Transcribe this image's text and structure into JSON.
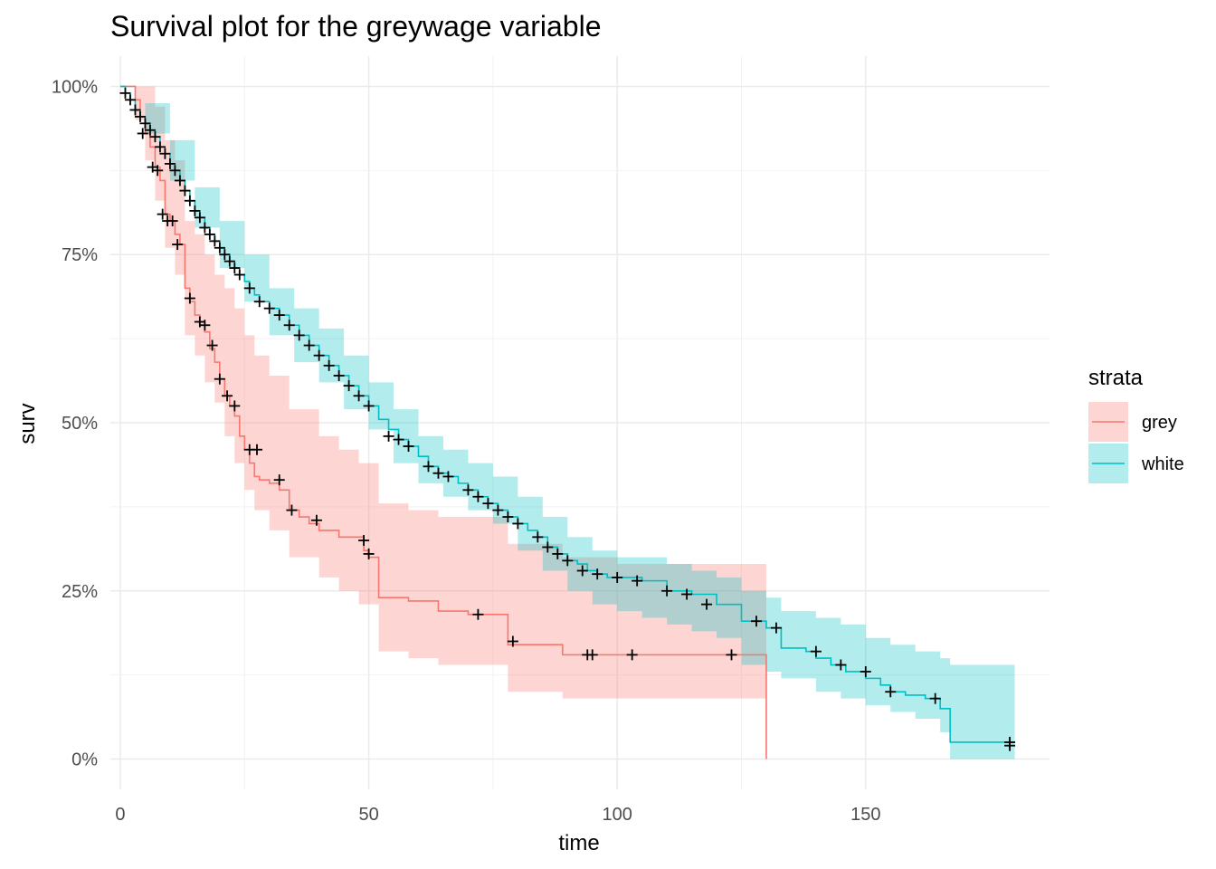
{
  "chart_data": {
    "type": "line",
    "title": "Survival plot for the greywage variable",
    "xlabel": "time",
    "ylabel": "surv",
    "xlim": [
      -2,
      187
    ],
    "ylim": [
      -0.045,
      1.045
    ],
    "x_ticks": [
      0,
      50,
      100,
      150
    ],
    "x_tick_labels": [
      "0",
      "50",
      "100",
      "150"
    ],
    "y_ticks": [
      0,
      0.25,
      0.5,
      0.75,
      1.0
    ],
    "y_tick_labels": [
      "0%",
      "25%",
      "50%",
      "75%",
      "100%"
    ],
    "grid": true,
    "legend": {
      "title": "strata",
      "position": "right"
    },
    "series": [
      {
        "name": "grey",
        "color": "#F8766D",
        "band_color": "#F8766D",
        "step_x": [
          0,
          3,
          4,
          5,
          6,
          7,
          8,
          9,
          10,
          11,
          12,
          13,
          14,
          15,
          16,
          17,
          18,
          19,
          20,
          21,
          22,
          23,
          24,
          25,
          26,
          27,
          28,
          30,
          32,
          34,
          36,
          38,
          40,
          44,
          49,
          50,
          52,
          58,
          64,
          70,
          78,
          89,
          100,
          110,
          123,
          130
        ],
        "step_y": [
          1.0,
          0.98,
          0.955,
          0.93,
          0.91,
          0.88,
          0.86,
          0.81,
          0.8,
          0.78,
          0.765,
          0.7,
          0.68,
          0.66,
          0.65,
          0.635,
          0.61,
          0.59,
          0.565,
          0.54,
          0.525,
          0.51,
          0.48,
          0.46,
          0.44,
          0.42,
          0.415,
          0.41,
          0.4,
          0.37,
          0.36,
          0.35,
          0.34,
          0.33,
          0.31,
          0.3,
          0.24,
          0.235,
          0.22,
          0.215,
          0.17,
          0.155,
          0.155,
          0.155,
          0.155,
          0.0
        ],
        "band_x": [
          0,
          3,
          5,
          7,
          9,
          11,
          13,
          15,
          17,
          19,
          21,
          23,
          25,
          27,
          30,
          34,
          40,
          44,
          48,
          52,
          58,
          64,
          70,
          78,
          89,
          100,
          110,
          123,
          130
        ],
        "band_lower": [
          1.0,
          0.95,
          0.89,
          0.83,
          0.76,
          0.72,
          0.63,
          0.6,
          0.56,
          0.53,
          0.48,
          0.44,
          0.4,
          0.37,
          0.34,
          0.3,
          0.27,
          0.25,
          0.23,
          0.16,
          0.15,
          0.14,
          0.14,
          0.1,
          0.09,
          0.09,
          0.09,
          0.09,
          0.09
        ],
        "band_upper": [
          1.0,
          1.0,
          1.0,
          0.97,
          0.92,
          0.89,
          0.8,
          0.78,
          0.75,
          0.72,
          0.7,
          0.67,
          0.63,
          0.6,
          0.57,
          0.52,
          0.48,
          0.46,
          0.44,
          0.38,
          0.37,
          0.36,
          0.36,
          0.32,
          0.3,
          0.29,
          0.29,
          0.29,
          0.29
        ],
        "censor_x": [
          4.5,
          6.5,
          7.5,
          8.5,
          9.5,
          10.5,
          11.5,
          14,
          16,
          17,
          18.5,
          20,
          21.5,
          23,
          26,
          27.5,
          32,
          34.5,
          39.5,
          49,
          50,
          72,
          79,
          94,
          95,
          103,
          123,
          179
        ],
        "censor_y": [
          0.93,
          0.88,
          0.875,
          0.81,
          0.8,
          0.8,
          0.765,
          0.685,
          0.65,
          0.645,
          0.615,
          0.565,
          0.54,
          0.525,
          0.46,
          0.46,
          0.415,
          0.37,
          0.355,
          0.325,
          0.305,
          0.215,
          0.175,
          0.155,
          0.155,
          0.155,
          0.155,
          0.02
        ]
      },
      {
        "name": "white",
        "color": "#00BFC4",
        "band_color": "#00BFC4",
        "step_x": [
          0,
          1,
          2,
          3,
          4,
          5,
          6,
          7,
          8,
          9,
          10,
          11,
          12,
          13,
          14,
          15,
          16,
          17,
          18,
          19,
          20,
          21,
          22,
          23,
          24,
          25,
          26,
          27,
          28,
          30,
          32,
          34,
          36,
          38,
          40,
          42,
          44,
          46,
          48,
          50,
          52,
          54,
          56,
          58,
          60,
          62,
          64,
          66,
          68,
          70,
          72,
          74,
          76,
          78,
          80,
          82,
          84,
          86,
          88,
          90,
          92,
          94,
          96,
          98,
          100,
          105,
          110,
          115,
          120,
          125,
          130,
          133,
          138,
          140,
          143,
          146,
          150,
          153,
          155,
          158,
          162,
          165,
          167,
          180
        ],
        "step_y": [
          1.0,
          0.99,
          0.98,
          0.965,
          0.955,
          0.945,
          0.935,
          0.925,
          0.91,
          0.9,
          0.885,
          0.875,
          0.86,
          0.845,
          0.83,
          0.815,
          0.805,
          0.79,
          0.78,
          0.77,
          0.76,
          0.75,
          0.74,
          0.73,
          0.72,
          0.71,
          0.7,
          0.69,
          0.68,
          0.67,
          0.66,
          0.645,
          0.63,
          0.615,
          0.6,
          0.585,
          0.57,
          0.555,
          0.54,
          0.525,
          0.505,
          0.49,
          0.475,
          0.465,
          0.45,
          0.435,
          0.425,
          0.42,
          0.41,
          0.4,
          0.39,
          0.38,
          0.37,
          0.36,
          0.35,
          0.34,
          0.33,
          0.315,
          0.305,
          0.295,
          0.29,
          0.28,
          0.275,
          0.27,
          0.27,
          0.265,
          0.25,
          0.245,
          0.23,
          0.205,
          0.195,
          0.165,
          0.16,
          0.15,
          0.14,
          0.13,
          0.12,
          0.11,
          0.1,
          0.095,
          0.09,
          0.075,
          0.025,
          0.025
        ],
        "band_x": [
          0,
          5,
          10,
          15,
          20,
          25,
          30,
          35,
          40,
          45,
          50,
          55,
          60,
          65,
          70,
          75,
          80,
          85,
          90,
          95,
          100,
          105,
          110,
          115,
          120,
          125,
          130,
          133,
          140,
          145,
          150,
          155,
          160,
          165,
          167,
          180
        ],
        "band_lower": [
          1.0,
          0.93,
          0.86,
          0.79,
          0.73,
          0.68,
          0.63,
          0.59,
          0.56,
          0.52,
          0.49,
          0.44,
          0.41,
          0.39,
          0.37,
          0.35,
          0.31,
          0.28,
          0.25,
          0.23,
          0.22,
          0.21,
          0.2,
          0.19,
          0.18,
          0.14,
          0.13,
          0.12,
          0.1,
          0.09,
          0.08,
          0.07,
          0.06,
          0.04,
          0.0,
          0.0
        ],
        "band_upper": [
          1.0,
          0.975,
          0.92,
          0.85,
          0.8,
          0.75,
          0.7,
          0.67,
          0.64,
          0.6,
          0.56,
          0.52,
          0.48,
          0.46,
          0.44,
          0.42,
          0.39,
          0.36,
          0.33,
          0.31,
          0.3,
          0.3,
          0.29,
          0.28,
          0.27,
          0.25,
          0.24,
          0.22,
          0.21,
          0.2,
          0.18,
          0.17,
          0.16,
          0.15,
          0.14,
          0.14
        ],
        "censor_x": [
          1,
          2,
          3,
          4,
          5,
          6,
          7,
          8,
          9,
          10,
          11,
          12,
          13,
          14,
          15,
          16,
          17,
          18,
          19,
          20,
          21,
          22,
          23,
          24,
          26,
          28,
          30,
          32,
          34,
          36,
          38,
          40,
          42,
          44,
          46,
          48,
          50,
          54,
          56,
          58,
          62,
          64,
          66,
          70,
          72,
          74,
          76,
          78,
          80,
          84,
          86,
          88,
          90,
          93,
          96,
          100,
          104,
          110,
          114,
          118,
          128,
          132,
          140,
          145,
          150,
          155,
          164,
          179
        ],
        "censor_y": [
          0.99,
          0.98,
          0.965,
          0.955,
          0.945,
          0.935,
          0.925,
          0.91,
          0.9,
          0.885,
          0.875,
          0.86,
          0.845,
          0.83,
          0.815,
          0.805,
          0.79,
          0.78,
          0.77,
          0.76,
          0.75,
          0.74,
          0.73,
          0.72,
          0.7,
          0.68,
          0.67,
          0.66,
          0.645,
          0.63,
          0.615,
          0.6,
          0.585,
          0.57,
          0.555,
          0.54,
          0.525,
          0.48,
          0.475,
          0.465,
          0.435,
          0.425,
          0.42,
          0.4,
          0.39,
          0.38,
          0.37,
          0.36,
          0.35,
          0.33,
          0.315,
          0.305,
          0.295,
          0.28,
          0.275,
          0.27,
          0.265,
          0.25,
          0.245,
          0.23,
          0.205,
          0.195,
          0.16,
          0.14,
          0.13,
          0.1,
          0.09,
          0.025
        ]
      }
    ]
  }
}
